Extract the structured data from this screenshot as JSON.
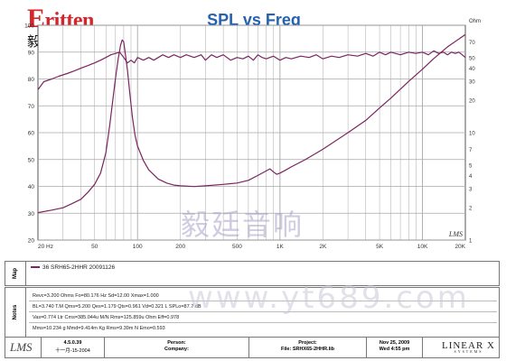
{
  "brand": {
    "logo_text": "ritten",
    "logo_cn": "毅廷音响"
  },
  "colors": {
    "curve": "#7a2560",
    "grid": "#a8a8a8",
    "axis_text": "#333333",
    "title": "#2563b0"
  },
  "chart_data": {
    "type": "line",
    "title": "SPL vs Freq",
    "x_scale": "log",
    "x_range": [
      20,
      20000
    ],
    "x_ticks": [
      {
        "value": 20,
        "label": "20 Hz"
      },
      {
        "value": 50,
        "label": "50"
      },
      {
        "value": 100,
        "label": "100"
      },
      {
        "value": 200,
        "label": "200"
      },
      {
        "value": 500,
        "label": "500"
      },
      {
        "value": 1000,
        "label": "1K"
      },
      {
        "value": 2000,
        "label": "2K"
      },
      {
        "value": 5000,
        "label": "5K"
      },
      {
        "value": 10000,
        "label": "10K"
      },
      {
        "value": 20000,
        "label": "20K"
      }
    ],
    "y_left": {
      "range": [
        20,
        100
      ],
      "ticks": [
        {
          "value": 20,
          "label": "20"
        },
        {
          "value": 30,
          "label": "30"
        },
        {
          "value": 40,
          "label": "40"
        },
        {
          "value": 50,
          "label": "50"
        },
        {
          "value": 60,
          "label": "60"
        },
        {
          "value": 70,
          "label": "70"
        },
        {
          "value": 80,
          "label": "80"
        },
        {
          "value": 90,
          "label": "90"
        },
        {
          "value": 100,
          "label": "100"
        }
      ]
    },
    "y_right": {
      "label": "Ohm",
      "scale": "log",
      "range": [
        1,
        100
      ],
      "ticks": [
        {
          "value": 1,
          "label": "1"
        },
        {
          "value": 2,
          "label": "2"
        },
        {
          "value": 3,
          "label": "3"
        },
        {
          "value": 4,
          "label": "4"
        },
        {
          "value": 5,
          "label": "5"
        },
        {
          "value": 7,
          "label": "7"
        },
        {
          "value": 10,
          "label": "10"
        },
        {
          "value": 20,
          "label": "20"
        },
        {
          "value": 30,
          "label": "30"
        },
        {
          "value": 40,
          "label": "40"
        },
        {
          "value": 50,
          "label": "50"
        },
        {
          "value": 70,
          "label": "70"
        }
      ]
    },
    "grid": true,
    "corner_label": "LMS",
    "series": [
      {
        "name": "SPL",
        "axis": "left",
        "x": [
          20,
          22,
          25,
          28,
          32,
          36,
          40,
          45,
          50,
          55,
          60,
          65,
          70,
          75,
          80,
          85,
          90,
          95,
          100,
          110,
          120,
          130,
          140,
          150,
          165,
          180,
          200,
          220,
          250,
          280,
          300,
          330,
          360,
          400,
          450,
          500,
          550,
          600,
          650,
          700,
          750,
          800,
          900,
          1000,
          1100,
          1200,
          1400,
          1600,
          1800,
          2000,
          2300,
          2600,
          3000,
          3500,
          4000,
          4500,
          5000,
          5500,
          6000,
          7000,
          8000,
          9000,
          10000,
          11000,
          12000,
          13000,
          14000,
          15000,
          16000,
          17000,
          18000,
          19000,
          20000
        ],
        "y": [
          76,
          79,
          80,
          81,
          82,
          83,
          84,
          85,
          86,
          87,
          88,
          89,
          89.5,
          90,
          88,
          86,
          87,
          86,
          88,
          87,
          88,
          87,
          88,
          89,
          88,
          89,
          88,
          89,
          88,
          89,
          87,
          89,
          88,
          89,
          87,
          88,
          87.5,
          88.5,
          87,
          89,
          88,
          87.5,
          88.5,
          87,
          88,
          87.5,
          88.5,
          88,
          89,
          87.5,
          88.5,
          88,
          89,
          88.5,
          89.5,
          88.5,
          90,
          89,
          90,
          89,
          90,
          89.5,
          90,
          89,
          90.5,
          89.5,
          90,
          89,
          90,
          89.5,
          90,
          89,
          88
        ]
      },
      {
        "name": "Impedance",
        "axis": "right",
        "x": [
          20,
          25,
          30,
          35,
          40,
          45,
          50,
          55,
          60,
          64,
          67,
          70,
          73,
          76,
          78,
          80,
          82,
          85,
          88,
          92,
          96,
          100,
          110,
          120,
          140,
          160,
          180,
          200,
          250,
          300,
          400,
          500,
          600,
          700,
          800,
          850,
          900,
          950,
          1000,
          1100,
          1200,
          1500,
          2000,
          3000,
          4000,
          5000,
          6000,
          8000,
          10000,
          12000,
          15000,
          20000
        ],
        "y": [
          1.8,
          1.9,
          2.0,
          2.2,
          2.4,
          2.8,
          3.3,
          4.2,
          6.5,
          12,
          20,
          32,
          48,
          65,
          73,
          70,
          55,
          38,
          24,
          14,
          9.5,
          7.5,
          5.5,
          4.5,
          3.7,
          3.4,
          3.25,
          3.2,
          3.15,
          3.2,
          3.3,
          3.4,
          3.6,
          4.0,
          4.4,
          4.6,
          4.3,
          4.1,
          4.2,
          4.5,
          4.8,
          5.6,
          7.0,
          10,
          13,
          17,
          21,
          30,
          39,
          49,
          63,
          82
        ]
      }
    ]
  },
  "map_panel": {
    "label": "Map",
    "entry": "36  SRH65-2HHR  20091126"
  },
  "notes_panel": {
    "label": "Notes",
    "lines": [
      "Revc=3.200 Ohms  Fo=80.176 Hz  Sd=12.00  Xmax=1.000",
      "BL=3.740 T.M  Qms=5.200  Qes=1.179  Qts=0.961  Vd=0.321 L  SPLo=87.7 dB",
      "Vas=0.774 Ltr  Cms=385.044u M/N  Rms=125.859u Ohm  Eff=0.978",
      "Mms=10.234 g  Mmd=9.414m Kg  Rms=9.39m N  Emo=0.593"
    ]
  },
  "footer": {
    "version": "4.5.0.39",
    "version_date": "十一月-15-2004",
    "person_label": "Person:",
    "company_label": "Company:",
    "project_label": "Project:",
    "file_label": "File: SRHX65-2HHR.lib",
    "date": "Nov 25, 2009",
    "time": "Wed  4:55 pm",
    "linearx": "LINEAR X",
    "linearx_sub": "SYSTEMS"
  },
  "watermarks": {
    "cn": "毅廷音响",
    "url": "www.yt689.com"
  }
}
